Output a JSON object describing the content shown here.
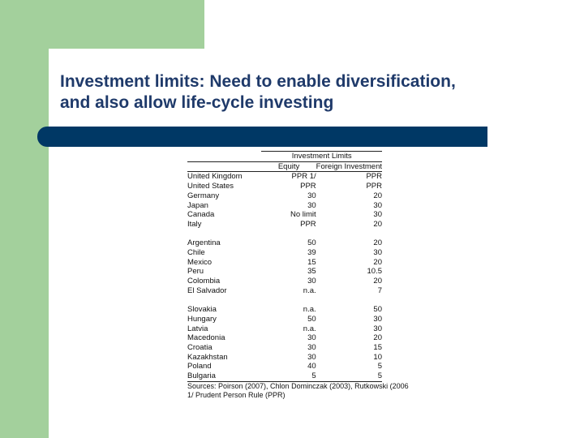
{
  "slide": {
    "title_line1": "Investment limits: Need to enable diversification,",
    "title_line2": "and also allow life-cycle investing"
  },
  "table": {
    "group_header": "Investment Limits",
    "col_equity": "Equity",
    "col_foreign": "Foreign Investment",
    "groups": [
      [
        {
          "country": "United Kingdom",
          "equity": "PPR 1/",
          "foreign": "PPR"
        },
        {
          "country": "United States",
          "equity": "PPR",
          "foreign": "PPR"
        },
        {
          "country": "Germany",
          "equity": "30",
          "foreign": "20"
        },
        {
          "country": "Japan",
          "equity": "30",
          "foreign": "30"
        },
        {
          "country": "Canada",
          "equity": "No limit",
          "foreign": "30"
        },
        {
          "country": "Italy",
          "equity": "PPR",
          "foreign": "20"
        }
      ],
      [
        {
          "country": "Argentina",
          "equity": "50",
          "foreign": "20"
        },
        {
          "country": "Chile",
          "equity": "39",
          "foreign": "30"
        },
        {
          "country": "Mexico",
          "equity": "15",
          "foreign": "20"
        },
        {
          "country": "Peru",
          "equity": "35",
          "foreign": "10.5"
        },
        {
          "country": "Colombia",
          "equity": "30",
          "foreign": "20"
        },
        {
          "country": "El Salvador",
          "equity": "n.a.",
          "foreign": "7"
        }
      ],
      [
        {
          "country": "Slovakia",
          "equity": "n.a.",
          "foreign": "50"
        },
        {
          "country": "Hungary",
          "equity": "50",
          "foreign": "30"
        },
        {
          "country": "Latvia",
          "equity": "n.a.",
          "foreign": "30"
        },
        {
          "country": "Macedonia",
          "equity": "30",
          "foreign": "20"
        },
        {
          "country": "Croatia",
          "equity": "30",
          "foreign": "15"
        },
        {
          "country": "Kazakhstan",
          "equity": "30",
          "foreign": "10"
        },
        {
          "country": "Poland",
          "equity": "40",
          "foreign": "5"
        },
        {
          "country": "Bulgaria",
          "equity": "5",
          "foreign": "5"
        }
      ]
    ],
    "sources": "Sources: Poirson (2007), Chlon Dominczak (2003), Rutkowski (2006",
    "footnote": "1/ Prudent Person Rule (PPR)"
  },
  "colors": {
    "accent_green": "#a3d09c",
    "bar_navy": "#003865",
    "title_text": "#1f3a6a"
  }
}
